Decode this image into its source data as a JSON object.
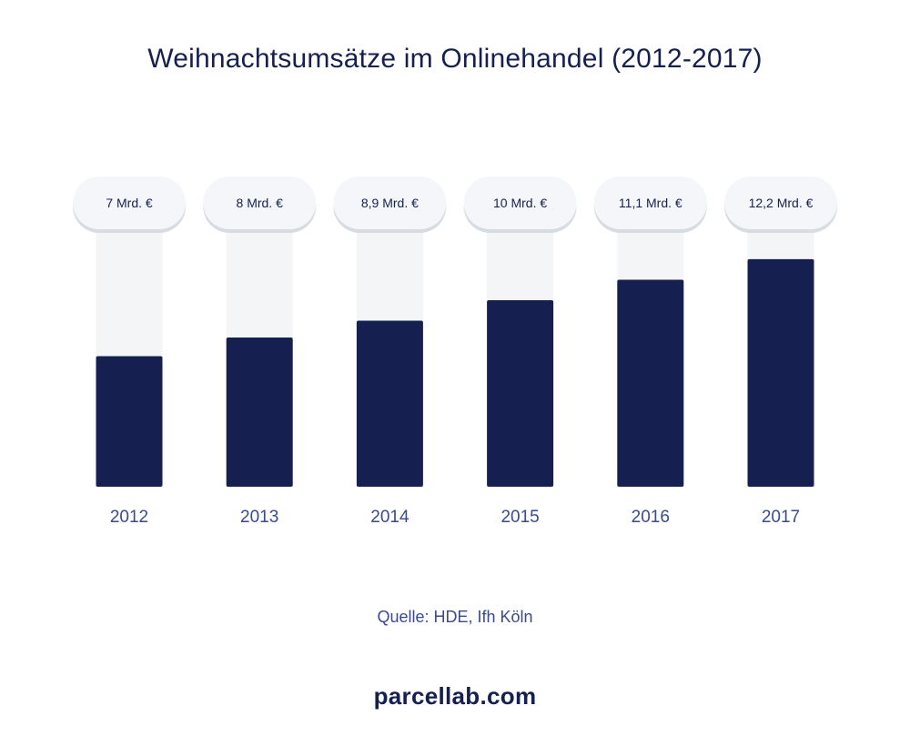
{
  "title": "Weihnachtsumsätze im Onlinehandel (2012-2017)",
  "source": "Quelle: HDE, Ifh Köln",
  "brand": "parcellab.com",
  "colors": {
    "bar": "#152050",
    "track": "#f4f5f7",
    "bubble": "#f4f6f9",
    "bubble_shadow": "#d7dce3",
    "year_label": "#3a4a8c",
    "value_label": "#152050"
  },
  "chart_data": {
    "type": "bar",
    "title": "Weihnachtsumsätze im Onlinehandel (2012-2017)",
    "categories": [
      "2012",
      "2013",
      "2014",
      "2015",
      "2016",
      "2017"
    ],
    "values": [
      7,
      8,
      8.9,
      10,
      11.1,
      12.2
    ],
    "value_labels": [
      "7 Mrd. €",
      "8 Mrd. €",
      "8,9 Mrd. €",
      "10 Mrd. €",
      "11,1 Mrd. €",
      "12,2 Mrd. €"
    ],
    "unit": "Mrd. €",
    "xlabel": "",
    "ylabel": "",
    "grid": false,
    "legend": "none"
  }
}
